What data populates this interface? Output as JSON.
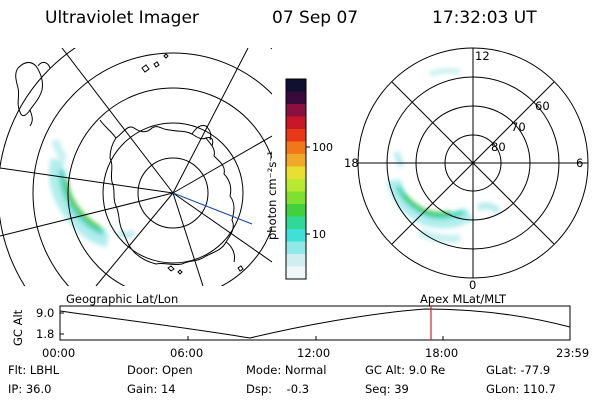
{
  "header": {
    "title": "Ultraviolet Imager",
    "date": "07 Sep 07",
    "time": "17:32:03 UT"
  },
  "geo_map": {
    "caption": "Geographic Lat/Lon"
  },
  "colorbar": {
    "unit": "photon cm⁻²s⁻¹",
    "tick_labels": [
      "100",
      "10"
    ],
    "colors": [
      "#101030",
      "#3a0a3a",
      "#8a1040",
      "#c81828",
      "#e83818",
      "#f07818",
      "#f0a828",
      "#e8e030",
      "#b8e830",
      "#80e030",
      "#40d040",
      "#30d898",
      "#40e0d8",
      "#90e8e8",
      "#d0eef0",
      "#eef6f8"
    ]
  },
  "polar_plot": {
    "caption": "Apex MLat/MLT",
    "mlt_labels": [
      "12",
      "18",
      "6",
      "0"
    ],
    "lat_labels": [
      "60",
      "70",
      "80"
    ]
  },
  "altitude_plot": {
    "ylabel": "GC Alt",
    "y_ticks": [
      "9.0",
      "1.8"
    ],
    "x_ticks": [
      "00:00",
      "06:00",
      "12:00",
      "18:00",
      "23:59"
    ],
    "marker_time": "17:32"
  },
  "footer": {
    "col1": [
      "Flt: LBHL",
      "IP: 36.0"
    ],
    "col2": [
      "Door: Open",
      "Gain: 14"
    ],
    "col3": [
      "Mode: Normal",
      "Dsp:    -0.3"
    ],
    "col4": [
      "GC Alt: 9.0 Re",
      "Seq: 39"
    ],
    "col5": [
      "GLat: -77.9",
      "GLon: 110.7"
    ]
  }
}
